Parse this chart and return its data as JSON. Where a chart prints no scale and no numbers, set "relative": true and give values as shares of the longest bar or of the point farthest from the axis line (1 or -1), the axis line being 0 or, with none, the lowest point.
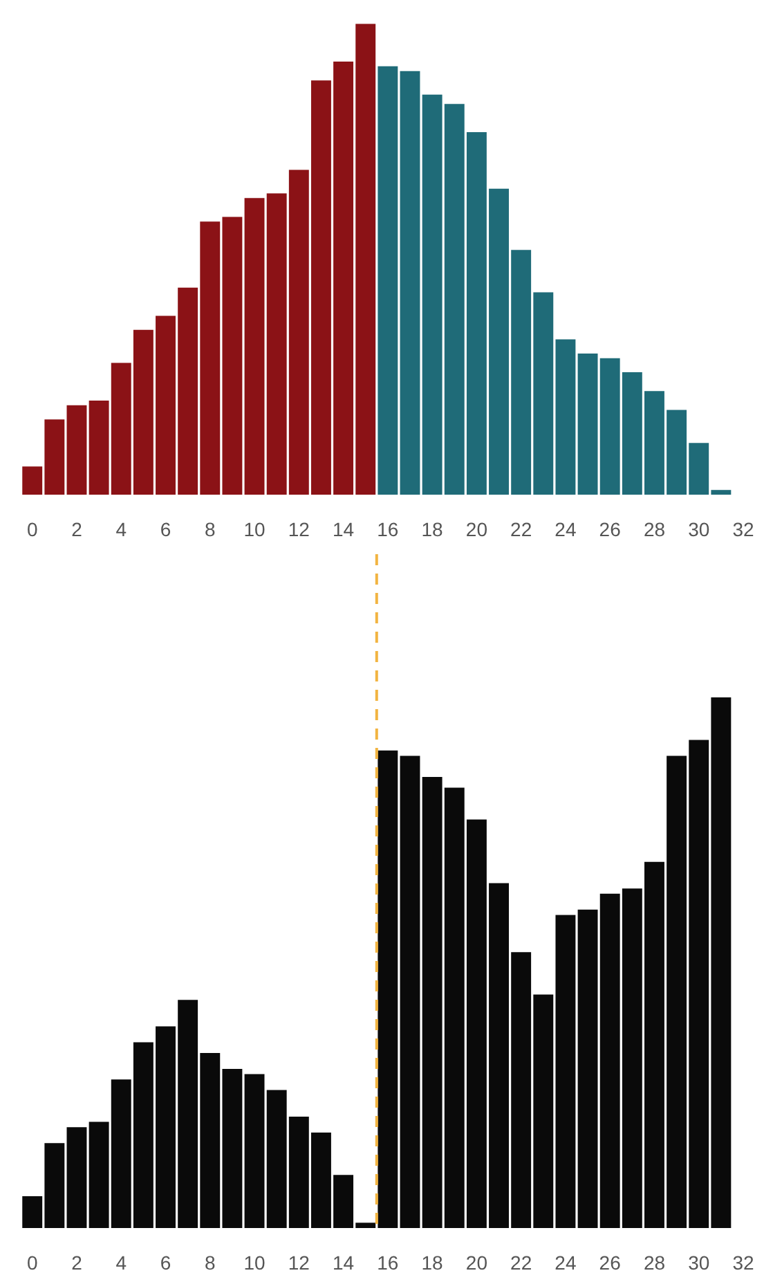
{
  "chart_data": [
    {
      "type": "bar",
      "relative": true,
      "x": [
        0,
        1,
        2,
        3,
        4,
        5,
        6,
        7,
        8,
        9,
        10,
        11,
        12,
        13,
        14,
        15,
        16,
        17,
        18,
        19,
        20,
        21,
        22,
        23,
        24,
        25,
        26,
        27,
        28,
        29,
        30,
        31
      ],
      "values": [
        0.06,
        0.16,
        0.19,
        0.2,
        0.28,
        0.35,
        0.38,
        0.44,
        0.58,
        0.59,
        0.63,
        0.64,
        0.69,
        0.88,
        0.92,
        1,
        0.91,
        0.9,
        0.85,
        0.83,
        0.77,
        0.65,
        0.52,
        0.43,
        0.33,
        0.3,
        0.29,
        0.26,
        0.22,
        0.18,
        0.11,
        0.01
      ],
      "colors": [
        "#8b1216",
        "#8b1216",
        "#8b1216",
        "#8b1216",
        "#8b1216",
        "#8b1216",
        "#8b1216",
        "#8b1216",
        "#8b1216",
        "#8b1216",
        "#8b1216",
        "#8b1216",
        "#8b1216",
        "#8b1216",
        "#8b1216",
        "#8b1216",
        "#1f6b78",
        "#1f6b78",
        "#1f6b78",
        "#1f6b78",
        "#1f6b78",
        "#1f6b78",
        "#1f6b78",
        "#1f6b78",
        "#1f6b78",
        "#1f6b78",
        "#1f6b78",
        "#1f6b78",
        "#1f6b78",
        "#1f6b78",
        "#1f6b78",
        "#1f6b78"
      ],
      "xlim": [
        -0.8,
        32
      ],
      "xticks": [
        0,
        2,
        4,
        6,
        8,
        10,
        12,
        14,
        16,
        18,
        20,
        22,
        24,
        26,
        28,
        30,
        32
      ],
      "grid": false
    },
    {
      "type": "bar",
      "relative": true,
      "x": [
        0,
        1,
        2,
        3,
        4,
        5,
        6,
        7,
        8,
        9,
        10,
        11,
        12,
        13,
        14,
        15,
        16,
        17,
        18,
        19,
        20,
        21,
        22,
        23,
        24,
        25,
        26,
        27,
        28,
        29,
        30,
        31
      ],
      "values": [
        0.06,
        0.16,
        0.19,
        0.2,
        0.28,
        0.35,
        0.38,
        0.43,
        0.33,
        0.3,
        0.29,
        0.26,
        0.21,
        0.18,
        0.1,
        0.01,
        0.9,
        0.89,
        0.85,
        0.83,
        0.77,
        0.65,
        0.52,
        0.44,
        0.59,
        0.6,
        0.63,
        0.64,
        0.69,
        0.89,
        0.92,
        1
      ],
      "color": "#0a0a0a",
      "xlim": [
        -0.8,
        32
      ],
      "xticks": [
        0,
        2,
        4,
        6,
        8,
        10,
        12,
        14,
        16,
        18,
        20,
        22,
        24,
        26,
        28,
        30,
        32
      ],
      "grid": false,
      "ref_lines": [
        {
          "axis": "x",
          "value": 15.5,
          "color": "#f2b441",
          "line_style": "dashed"
        }
      ]
    }
  ]
}
